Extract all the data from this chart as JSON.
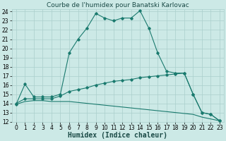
{
  "title": "Courbe de l'humidex pour Banatski Karlovac",
  "xlabel": "Humidex (Indice chaleur)",
  "xlim": [
    -0.5,
    23.5
  ],
  "ylim": [
    12,
    24.3
  ],
  "xticks": [
    0,
    1,
    2,
    3,
    4,
    5,
    6,
    7,
    8,
    9,
    10,
    11,
    12,
    13,
    14,
    15,
    16,
    17,
    18,
    19,
    20,
    21,
    22,
    23
  ],
  "yticks": [
    12,
    13,
    14,
    15,
    16,
    17,
    18,
    19,
    20,
    21,
    22,
    23,
    24
  ],
  "bg_color": "#cce9e6",
  "grid_color": "#aacfcc",
  "line_color": "#1a7a6e",
  "line1_x": [
    0,
    1,
    2,
    3,
    4,
    5,
    6,
    7,
    8,
    9,
    10,
    11,
    12,
    13,
    14,
    15,
    16,
    17,
    18,
    19,
    20,
    21,
    22,
    23
  ],
  "line1_y": [
    13.9,
    16.1,
    14.7,
    14.7,
    14.7,
    15.0,
    19.5,
    21.0,
    22.2,
    23.8,
    23.3,
    23.0,
    23.3,
    23.3,
    24.1,
    22.2,
    19.5,
    17.5,
    17.3,
    17.3,
    15.0,
    13.0,
    12.8,
    12.1
  ],
  "line2_x": [
    0,
    1,
    2,
    3,
    4,
    5,
    6,
    7,
    8,
    9,
    10,
    11,
    12,
    13,
    14,
    15,
    16,
    17,
    18,
    19,
    20,
    21,
    22,
    23
  ],
  "line2_y": [
    14.0,
    14.5,
    14.5,
    14.5,
    14.5,
    14.8,
    15.3,
    15.5,
    15.7,
    16.0,
    16.2,
    16.4,
    16.5,
    16.6,
    16.8,
    16.9,
    17.0,
    17.1,
    17.2,
    17.3,
    15.0,
    13.0,
    12.8,
    12.1
  ],
  "line3_x": [
    0,
    1,
    2,
    3,
    4,
    5,
    6,
    7,
    8,
    9,
    10,
    11,
    12,
    13,
    14,
    15,
    16,
    17,
    18,
    19,
    20,
    21,
    22,
    23
  ],
  "line3_y": [
    13.9,
    14.2,
    14.3,
    14.3,
    14.2,
    14.2,
    14.2,
    14.1,
    14.0,
    13.9,
    13.8,
    13.7,
    13.6,
    13.5,
    13.4,
    13.3,
    13.2,
    13.1,
    13.0,
    12.9,
    12.8,
    12.5,
    12.3,
    12.1
  ],
  "title_fontsize": 6.5,
  "tick_fontsize": 5.5,
  "label_fontsize": 7.0
}
